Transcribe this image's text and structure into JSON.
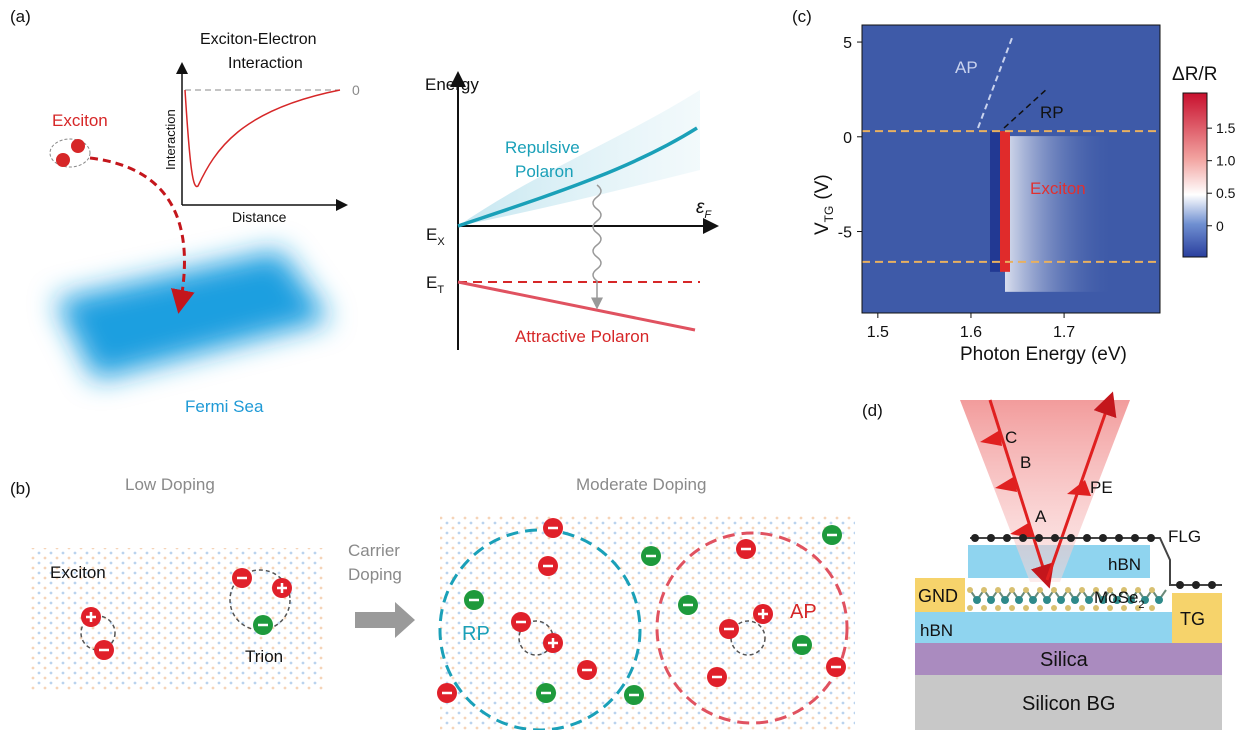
{
  "panel_a": {
    "label": "(a)",
    "inset_title": [
      "Exciton-Electron",
      "Interaction"
    ],
    "inset_ylabel": "Interaction",
    "inset_xlabel": "Distance",
    "inset_zero": 0,
    "exciton": "Exciton",
    "fermi_sea": "Fermi Sea",
    "energy": "Energy",
    "eps": "ε",
    "eps_sub": "F",
    "ex": "E",
    "ex_sub": "X",
    "et": "E",
    "et_sub": "T",
    "repulsive": [
      "Repulsive",
      "Polaron"
    ],
    "attractive": "Attractive Polaron"
  },
  "panel_b": {
    "label": "(b)",
    "low": "Low Doping",
    "moderate": "Moderate Doping",
    "exciton": "Exciton",
    "trion": "Trion",
    "arrow": [
      "Carrier",
      "Doping"
    ],
    "rp": "RP",
    "ap": "AP"
  },
  "panel_c": {
    "label": "(c)",
    "xlabel": "Photon Energy (eV)",
    "ylabel": "V",
    "ylabel_sub": "TG",
    "ylabel_unit": "(V)",
    "xlim": [
      1.483,
      1.803
    ],
    "ylim": [
      -9.3,
      5.9
    ],
    "xticks": [
      1.5,
      1.6,
      1.7
    ],
    "yticks": [
      -5,
      0,
      5
    ],
    "colorbar_title": "ΔR/R",
    "clim": [
      -0.48,
      2.04
    ],
    "cticks": [
      0,
      0.5,
      {
        "value": 1,
        "label": "1.0"
      },
      1.5
    ],
    "ap": "AP",
    "rp": "RP",
    "exciton": "Exciton",
    "dashed_lines": [
      0.3,
      -6.6
    ]
  },
  "panel_d": {
    "label": "(d)",
    "beam": [
      "C",
      "B",
      "A"
    ],
    "pe": "PE",
    "flg": "FLG",
    "hbn_top": "hBN",
    "mose2": "MoSe",
    "mose2_sub": "2",
    "gnd": "GND",
    "hbn_bottom": "hBN",
    "tg": "TG",
    "silica": "Silica",
    "silicon": "Silicon BG"
  }
}
